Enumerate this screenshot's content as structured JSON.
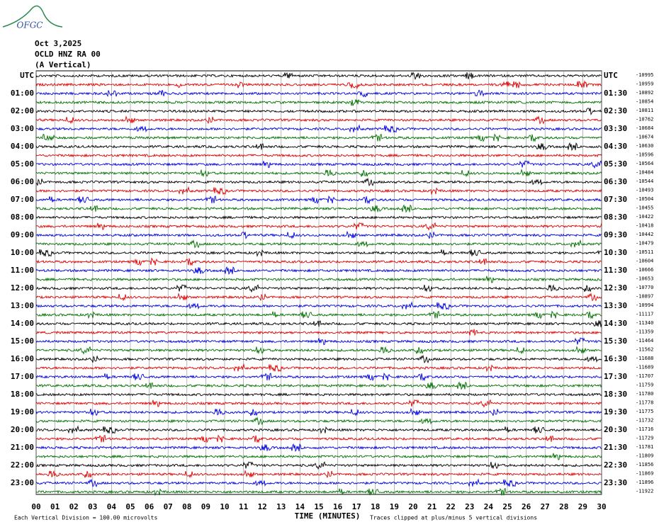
{
  "logo": "OFGC",
  "header": {
    "date": "Oct 3,2025",
    "station": "OCLD HNZ RA 00",
    "component": "(A Vertical)"
  },
  "left_labels": [
    "UTC",
    "01:00",
    "02:00",
    "03:00",
    "04:00",
    "05:00",
    "06:00",
    "07:00",
    "08:00",
    "09:00",
    "10:00",
    "11:00",
    "12:00",
    "13:00",
    "14:00",
    "15:00",
    "16:00",
    "17:00",
    "18:00",
    "19:00",
    "20:00",
    "21:00",
    "22:00",
    "23:00"
  ],
  "right_labels": [
    "UTC",
    "01:30",
    "02:30",
    "03:30",
    "04:30",
    "05:30",
    "06:30",
    "07:30",
    "08:30",
    "09:30",
    "10:30",
    "11:30",
    "12:30",
    "13:30",
    "14:30",
    "15:30",
    "16:30",
    "17:30",
    "18:30",
    "19:30",
    "20:30",
    "21:30",
    "22:30",
    "23:30"
  ],
  "offsets": [
    "-10995",
    "-10959",
    "-10892",
    "-10854",
    "-10811",
    "-10762",
    "-10684",
    "-10674",
    "-10630",
    "-10596",
    "-10564",
    "-10484",
    "-10544",
    "-10493",
    "-10504",
    "-10455",
    "-10422",
    "-10418",
    "-10442",
    "-10479",
    "-10511",
    "-10604",
    "-10666",
    "-10653",
    "-10770",
    "-10897",
    "-10994",
    "-11117",
    "-11340",
    "-11359",
    "-11464",
    "-11562",
    "-11688",
    "-11689",
    "-11707",
    "-11759",
    "-11780",
    "-11778",
    "-11775",
    "-11732",
    "-11716",
    "-11729",
    "-11781",
    "-11809",
    "-11856",
    "-11869",
    "-11896",
    "-11922"
  ],
  "x_labels": [
    "00",
    "01",
    "02",
    "03",
    "04",
    "05",
    "06",
    "07",
    "08",
    "09",
    "10",
    "11",
    "12",
    "13",
    "14",
    "15",
    "16",
    "17",
    "18",
    "19",
    "20",
    "21",
    "22",
    "23",
    "24",
    "25",
    "26",
    "27",
    "28",
    "29",
    "30"
  ],
  "footer": {
    "scale": "Each Vertical Division =  100.00 microvolts",
    "axis_title": "TIME (MINUTES)",
    "clip_note": "Traces clipped at plus/minus 5 vertical divisions"
  },
  "trace_colors": [
    "#000000",
    "#e00000",
    "#0000e0",
    "#007000"
  ]
}
